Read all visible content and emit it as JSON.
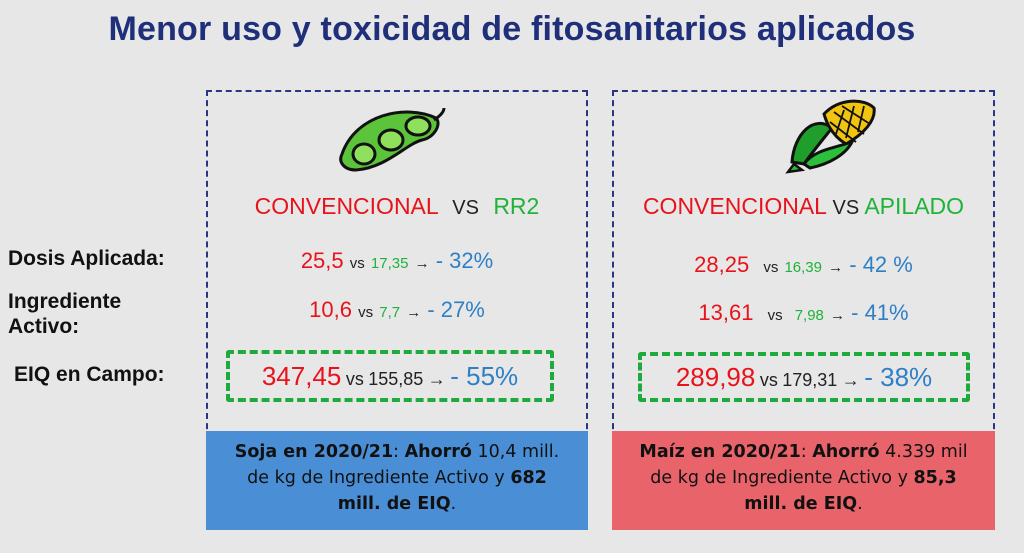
{
  "title": "Menor uso y toxicidad de fitosanitarios aplicados",
  "row_labels": {
    "dosis": "Dosis Aplicada:",
    "ingrediente_1": "Ingrediente",
    "ingrediente_2": "Activo:",
    "eiq": "EIQ en Campo:"
  },
  "colors": {
    "title": "#1f2f7a",
    "conventional": "#e8121b",
    "alternative": "#1fb339",
    "reduction": "#2f7fc6",
    "soy_footer": "#4a8fd6",
    "corn_footer": "#e8646a"
  },
  "soy": {
    "icon": "soybean-pod-icon",
    "header": {
      "left": "CONVENCIONAL",
      "vs": "VS",
      "right": "RR2"
    },
    "dosis": {
      "conv": "25,5",
      "vs": "vs",
      "alt": "17,35",
      "arrow": "→",
      "reduction": "- 32%"
    },
    "ingrediente": {
      "conv": "10,6",
      "vs": "vs",
      "alt": "7,7",
      "arrow": "→",
      "reduction": "- 27%"
    },
    "eiq": {
      "conv": "347,45",
      "vs": "vs",
      "alt": "155,85",
      "arrow": "→",
      "reduction": "- 55%"
    },
    "footer": {
      "bold1": "Soja en 2020/21",
      "t1": ": ",
      "bold2": "Ahorró",
      "t2": " 10,4 mill. de kg de Ingrediente Activo y ",
      "bold3": "682 mill. de EIQ",
      "t3": "."
    }
  },
  "corn": {
    "icon": "corn-cob-icon",
    "header": {
      "left": "CONVENCIONAL",
      "vs": "VS",
      "right": "APILADO"
    },
    "dosis": {
      "conv": "28,25",
      "vs": "vs",
      "alt": "16,39",
      "arrow": "→",
      "reduction": "- 42 %"
    },
    "ingrediente": {
      "conv": "13,61",
      "vs": "vs",
      "alt": "7,98",
      "arrow": "→",
      "reduction": "- 41%"
    },
    "eiq": {
      "conv": "289,98",
      "vs": "vs",
      "alt": "179,31",
      "arrow": "→",
      "reduction": "- 38%"
    },
    "footer": {
      "bold1": "Maíz en 2020/21",
      "t1": ": ",
      "bold2": "Ahorró",
      "t2": " 4.339 mil de kg de Ingrediente Activo y ",
      "bold3": "85,3 mill. de EIQ",
      "t3": "."
    }
  }
}
